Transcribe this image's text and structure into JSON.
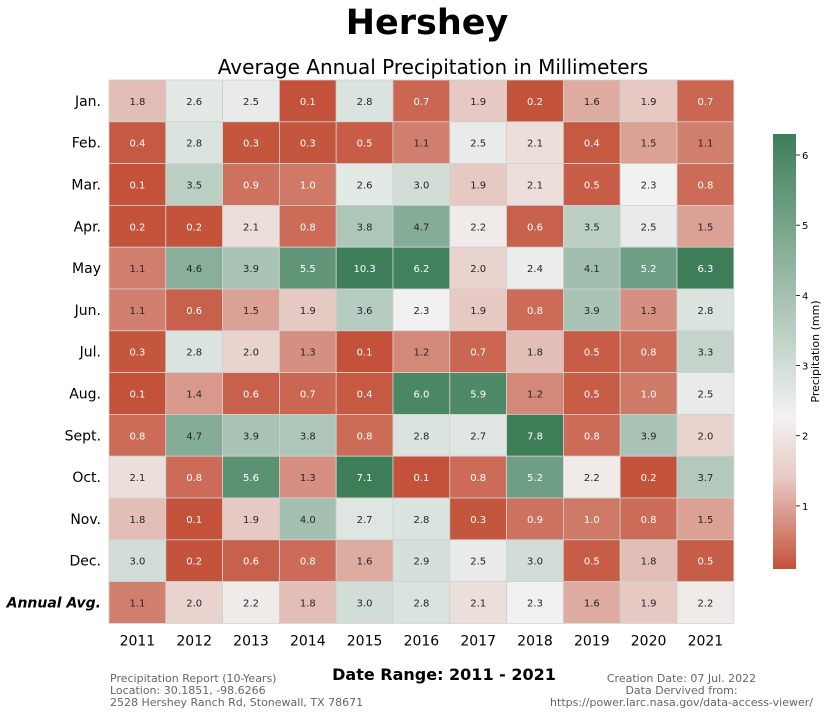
{
  "chart_data": {
    "type": "heatmap",
    "title": "Hershey",
    "subtitle": "Average Annual Precipitation in Millimeters",
    "xlabel": "Date Range: 2011 - 2021",
    "colorbar_label": "Precipitation (mm)",
    "colorbar_ticks": [
      1,
      2,
      3,
      4,
      5,
      6
    ],
    "color_range": [
      0.1,
      6.3
    ],
    "colors": {
      "low": "#c4523a",
      "mid": "#f2f2f2",
      "high": "#3d7e59"
    },
    "x": [
      "2011",
      "2012",
      "2013",
      "2014",
      "2015",
      "2016",
      "2017",
      "2018",
      "2019",
      "2020",
      "2021"
    ],
    "y": [
      "Jan.",
      "Feb.",
      "Mar.",
      "Apr.",
      "May",
      "Jun.",
      "Jul.",
      "Aug.",
      "Sept.",
      "Oct.",
      "Nov.",
      "Dec.",
      "Annual Avg."
    ],
    "values": [
      [
        1.8,
        2.6,
        2.5,
        0.1,
        2.8,
        0.7,
        1.9,
        0.2,
        1.6,
        1.9,
        0.7
      ],
      [
        0.4,
        2.8,
        0.3,
        0.3,
        0.5,
        1.1,
        2.5,
        2.1,
        0.4,
        1.5,
        1.1
      ],
      [
        0.1,
        3.5,
        0.9,
        1.0,
        2.6,
        3.0,
        1.9,
        2.1,
        0.5,
        2.3,
        0.8
      ],
      [
        0.2,
        0.2,
        2.1,
        0.8,
        3.8,
        4.7,
        2.2,
        0.6,
        3.5,
        2.5,
        1.5
      ],
      [
        1.1,
        4.6,
        3.9,
        5.5,
        10.3,
        6.2,
        2.0,
        2.4,
        4.1,
        5.2,
        6.3
      ],
      [
        1.1,
        0.6,
        1.5,
        1.9,
        3.6,
        2.3,
        1.9,
        0.8,
        3.9,
        1.3,
        2.8
      ],
      [
        0.3,
        2.8,
        2.0,
        1.3,
        0.1,
        1.2,
        0.7,
        1.8,
        0.5,
        0.8,
        3.3
      ],
      [
        0.1,
        1.4,
        0.6,
        0.7,
        0.4,
        6.0,
        5.9,
        1.2,
        0.5,
        1.0,
        2.5
      ],
      [
        0.8,
        4.7,
        3.9,
        3.8,
        0.8,
        2.8,
        2.7,
        7.8,
        0.8,
        3.9,
        2.0
      ],
      [
        2.1,
        0.8,
        5.6,
        1.3,
        7.1,
        0.1,
        0.8,
        5.2,
        2.2,
        0.2,
        3.7
      ],
      [
        1.8,
        0.1,
        1.9,
        4.0,
        2.7,
        2.8,
        0.3,
        0.9,
        1.0,
        0.8,
        1.5
      ],
      [
        3.0,
        0.2,
        0.6,
        0.8,
        1.6,
        2.9,
        2.5,
        3.0,
        0.5,
        1.8,
        0.5
      ],
      [
        1.1,
        2.0,
        2.2,
        1.8,
        3.0,
        2.8,
        2.1,
        2.3,
        1.6,
        1.9,
        2.2
      ]
    ]
  },
  "footer": {
    "left": [
      "Precipitation Report (10-Years)",
      "Location: 30.1851, -98.6266",
      "2528 Hershey Ranch Rd, Stonewall, TX 78671"
    ],
    "right": [
      "Creation Date: 07 Jul. 2022",
      "Data Dervived from:",
      "https://power.larc.nasa.gov/data-access-viewer/"
    ]
  }
}
